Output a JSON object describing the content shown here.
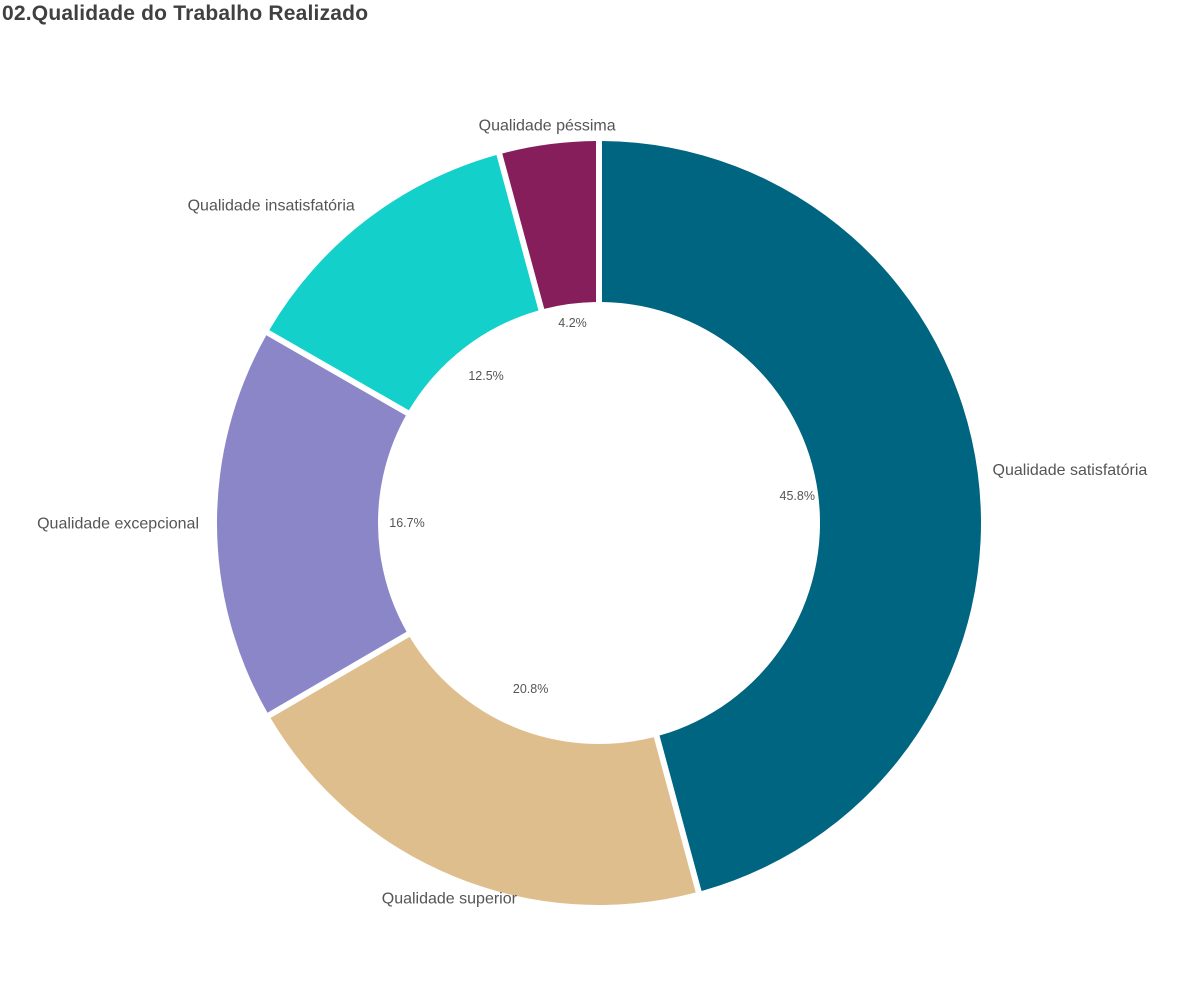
{
  "chart_data": {
    "type": "pie",
    "variant": "donut",
    "title": "02.Qualidade do Trabalho Realizado",
    "slices": [
      {
        "label": "Qualidade satisfatória",
        "value": 45.8,
        "value_label": "45.8%",
        "color": "#006580"
      },
      {
        "label": "Qualidade superior",
        "value": 20.8,
        "value_label": "20.8%",
        "color": "#dfbe8e"
      },
      {
        "label": "Qualidade excepcional",
        "value": 16.7,
        "value_label": "16.7%",
        "color": "#8b86c8"
      },
      {
        "label": "Qualidade insatisfatória",
        "value": 12.5,
        "value_label": "12.5%",
        "color": "#13d0cb"
      },
      {
        "label": "Qualidade péssima",
        "value": 4.2,
        "value_label": "4.2%",
        "color": "#871e5c"
      }
    ]
  }
}
